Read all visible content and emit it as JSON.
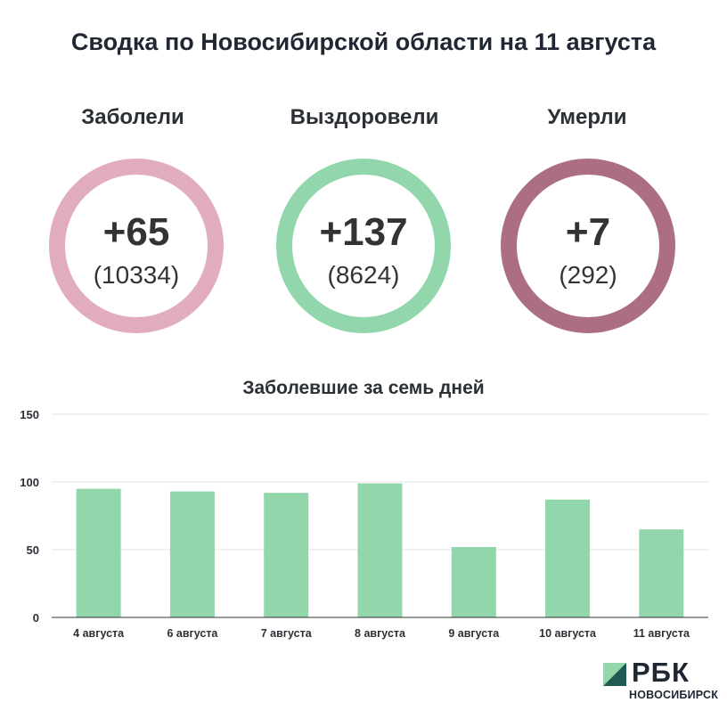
{
  "title": "Сводка по Новосибирской области на 11 августа",
  "stats": [
    {
      "label": "Заболели",
      "delta": "+65",
      "total": "(10334)",
      "color": "#e1adbc"
    },
    {
      "label": "Выздоровели",
      "delta": "+137",
      "total": "(8624)",
      "color": "#92d6ab"
    },
    {
      "label": "Умерли",
      "delta": "+7",
      "total": "(292)",
      "color": "#ab6e84"
    }
  ],
  "chart_data": {
    "type": "bar",
    "title": "Заболевшие за семь дней",
    "categories": [
      "4 августа",
      "6 августа",
      "7 августа",
      "8 августа",
      "9 августа",
      "10 августа",
      "11 августа"
    ],
    "values": [
      95,
      93,
      92,
      99,
      52,
      87,
      65
    ],
    "ylim": [
      0,
      150
    ],
    "yticks": [
      0,
      50,
      100,
      150
    ],
    "grid": true,
    "bar_color": "#92d6ab"
  },
  "brand": {
    "name": "РБК",
    "sub": "НОВОСИБИРСК",
    "colors": [
      "#92d6ab",
      "#1f5a52"
    ]
  }
}
